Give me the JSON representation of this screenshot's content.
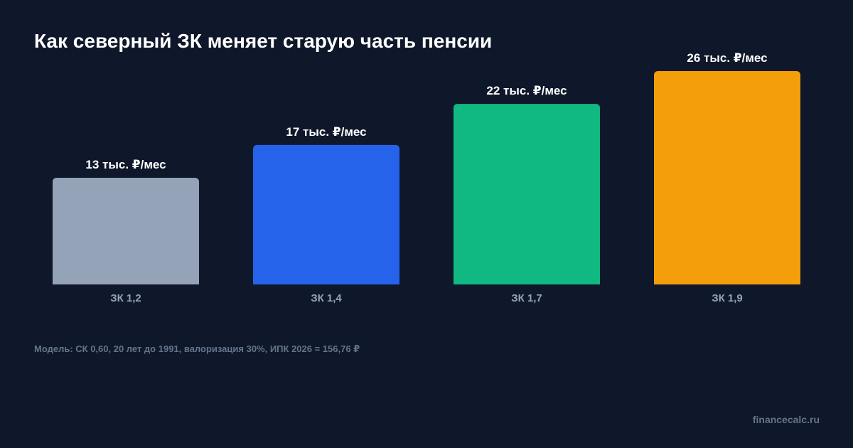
{
  "chart_data": {
    "type": "bar",
    "title": "Как северный ЗК меняет старую часть пенсии",
    "categories": [
      "ЗК 1,2",
      "ЗК 1,4",
      "ЗК 1,7",
      "ЗК 1,9"
    ],
    "values": [
      13,
      17,
      22,
      26
    ],
    "data_labels": [
      "13 тыс. ₽/мес",
      "17 тыс. ₽/мес",
      "22 тыс. ₽/мес",
      "26 тыс. ₽/мес"
    ],
    "colors": [
      "#94a3b8",
      "#2563eb",
      "#10b981",
      "#f59e0b"
    ],
    "xlabel": "",
    "ylabel": "",
    "ylim": [
      0,
      26
    ],
    "grid": false,
    "legend": "none"
  },
  "note": "Модель: СК 0,60, 20 лет до 1991, валоризация 30%, ИПК 2026 = 156,76 ₽",
  "brand": "financecalc.ru"
}
